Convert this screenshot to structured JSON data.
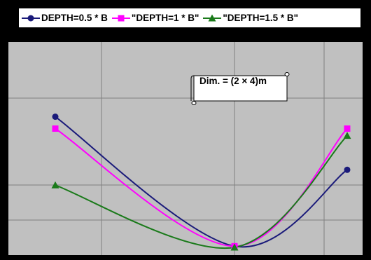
{
  "chart_data": {
    "type": "line",
    "title": "",
    "xlabel": "",
    "ylabel": "",
    "x": [
      0,
      1,
      2
    ],
    "series": [
      {
        "name": "DEPTH=0.5 * B",
        "values": [
          3.3,
          0.03,
          1.96
        ],
        "color": "#1a1a7a",
        "marker": "circle"
      },
      {
        "name": "\"DEPTH=1 * B\"",
        "values": [
          3.0,
          0.03,
          3.0
        ],
        "color": "#ff00ff",
        "marker": "square"
      },
      {
        "name": "\"DEPTH=1.5 * B\"",
        "values": [
          1.57,
          0.0,
          2.82
        ],
        "color": "#1a7a1a",
        "marker": "triangle"
      }
    ],
    "annotation": "Dim. = (2 × 4)m",
    "grid": true,
    "legend_position": "top",
    "plot_background": "#c0c0c0",
    "frame_color": "#000000",
    "gridline_color": "#808080"
  }
}
